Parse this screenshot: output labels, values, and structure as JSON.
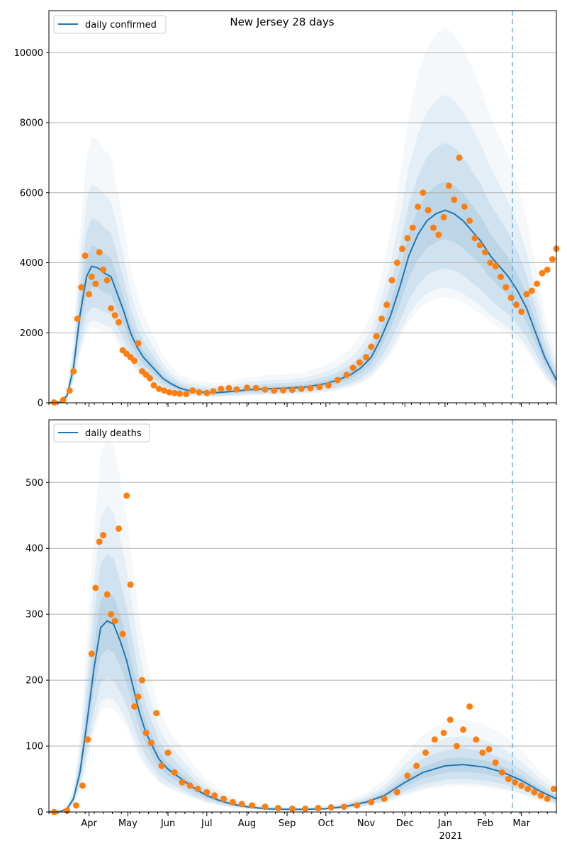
{
  "chart_data": [
    {
      "type": "line",
      "title": "New Jersey 28 days",
      "xlabel": "",
      "ylabel": "",
      "legend": {
        "label": "daily confirmed",
        "placement": "top-left"
      },
      "x_ticks": [
        "Apr",
        "May",
        "Jun",
        "Jul",
        "Aug",
        "Sep",
        "Oct",
        "Nov",
        "Dec",
        "Jan",
        "Feb",
        "Mar"
      ],
      "y_ticks": [
        0,
        2000,
        4000,
        6000,
        8000,
        10000
      ],
      "ylim": [
        0,
        11200
      ],
      "xlim": [
        "2020-03-01",
        "2021-03-28"
      ],
      "grid": "horizontal",
      "forecast_start": "2021-02-22",
      "series": [
        {
          "name": "daily confirmed",
          "kind": "model-median-line",
          "color": "#1f77b4",
          "x": [
            "2020-03-01",
            "2020-03-10",
            "2020-03-15",
            "2020-03-20",
            "2020-03-25",
            "2020-03-30",
            "2020-04-03",
            "2020-04-08",
            "2020-04-13",
            "2020-04-18",
            "2020-04-23",
            "2020-04-28",
            "2020-05-03",
            "2020-05-08",
            "2020-05-13",
            "2020-05-18",
            "2020-05-23",
            "2020-05-28",
            "2020-06-03",
            "2020-06-10",
            "2020-06-17",
            "2020-06-24",
            "2020-07-01",
            "2020-07-08",
            "2020-07-15",
            "2020-07-22",
            "2020-08-01",
            "2020-08-15",
            "2020-09-01",
            "2020-09-15",
            "2020-10-01",
            "2020-10-10",
            "2020-10-20",
            "2020-10-28",
            "2020-11-05",
            "2020-11-12",
            "2020-11-20",
            "2020-11-27",
            "2020-12-04",
            "2020-12-11",
            "2020-12-18",
            "2020-12-25",
            "2021-01-01",
            "2021-01-08",
            "2021-01-15",
            "2021-01-22",
            "2021-01-29",
            "2021-02-05",
            "2021-02-12",
            "2021-02-19",
            "2021-02-26",
            "2021-03-05",
            "2021-03-12",
            "2021-03-19",
            "2021-03-28"
          ],
          "y": [
            0,
            20,
            200,
            1000,
            2500,
            3600,
            3900,
            3850,
            3700,
            3600,
            3100,
            2600,
            2000,
            1600,
            1300,
            1100,
            900,
            700,
            550,
            420,
            350,
            320,
            300,
            290,
            310,
            330,
            370,
            400,
            420,
            450,
            550,
            650,
            800,
            1000,
            1300,
            1800,
            2500,
            3300,
            4200,
            4800,
            5200,
            5400,
            5500,
            5400,
            5200,
            4900,
            4600,
            4200,
            3900,
            3600,
            3200,
            2700,
            2000,
            1300,
            650
          ]
        },
        {
          "name": "",
          "kind": "observed-daily-points",
          "color": "#ff7f0e",
          "x": [
            "2020-03-05",
            "2020-03-12",
            "2020-03-17",
            "2020-03-20",
            "2020-03-23",
            "2020-03-26",
            "2020-03-29",
            "2020-04-01",
            "2020-04-03",
            "2020-04-06",
            "2020-04-09",
            "2020-04-12",
            "2020-04-15",
            "2020-04-18",
            "2020-04-21",
            "2020-04-24",
            "2020-04-27",
            "2020-04-30",
            "2020-05-03",
            "2020-05-06",
            "2020-05-09",
            "2020-05-12",
            "2020-05-15",
            "2020-05-18",
            "2020-05-21",
            "2020-05-25",
            "2020-05-29",
            "2020-06-02",
            "2020-06-06",
            "2020-06-10",
            "2020-06-15",
            "2020-06-20",
            "2020-06-25",
            "2020-07-01",
            "2020-07-06",
            "2020-07-12",
            "2020-07-18",
            "2020-07-24",
            "2020-08-01",
            "2020-08-08",
            "2020-08-15",
            "2020-08-22",
            "2020-08-29",
            "2020-09-05",
            "2020-09-12",
            "2020-09-19",
            "2020-09-26",
            "2020-10-03",
            "2020-10-10",
            "2020-10-17",
            "2020-10-22",
            "2020-10-27",
            "2020-11-01",
            "2020-11-05",
            "2020-11-09",
            "2020-11-13",
            "2020-11-17",
            "2020-11-21",
            "2020-11-25",
            "2020-11-29",
            "2020-12-03",
            "2020-12-07",
            "2020-12-11",
            "2020-12-15",
            "2020-12-19",
            "2020-12-23",
            "2020-12-27",
            "2020-12-31",
            "2021-01-04",
            "2021-01-08",
            "2021-01-12",
            "2021-01-16",
            "2021-01-20",
            "2021-01-24",
            "2021-01-28",
            "2021-02-01",
            "2021-02-05",
            "2021-02-09",
            "2021-02-13",
            "2021-02-17",
            "2021-02-21",
            "2021-02-25",
            "2021-03-01",
            "2021-03-05",
            "2021-03-09",
            "2021-03-13",
            "2021-03-17",
            "2021-03-21",
            "2021-03-25",
            "2021-03-28"
          ],
          "y": [
            10,
            80,
            350,
            900,
            2400,
            3300,
            4200,
            3100,
            3600,
            3400,
            4300,
            3800,
            3500,
            2700,
            2500,
            2300,
            1500,
            1400,
            1300,
            1200,
            1700,
            900,
            800,
            700,
            500,
            400,
            350,
            300,
            280,
            260,
            250,
            350,
            300,
            280,
            330,
            400,
            420,
            380,
            430,
            420,
            380,
            350,
            360,
            370,
            400,
            420,
            450,
            500,
            650,
            800,
            1000,
            1150,
            1300,
            1600,
            1900,
            2400,
            2800,
            3500,
            4000,
            4400,
            4700,
            5000,
            5600,
            6000,
            5500,
            5000,
            4800,
            5300,
            6200,
            5800,
            7000,
            5600,
            5200,
            4700,
            4500,
            4300,
            4000,
            3900,
            3600,
            3300,
            3000,
            2800,
            2600,
            3100,
            3200,
            3400,
            3700,
            3800,
            4100,
            4400
          ]
        }
      ]
    },
    {
      "type": "line",
      "title": "",
      "xlabel": "",
      "ylabel": "",
      "legend": {
        "label": "daily deaths",
        "placement": "top-left"
      },
      "x_ticks": [
        "Apr",
        "May",
        "Jun",
        "Jul",
        "Aug",
        "Sep",
        "Oct",
        "Nov",
        "Dec",
        "Jan",
        "Feb",
        "Mar"
      ],
      "x_year_label": "2021",
      "y_ticks": [
        0,
        100,
        200,
        300,
        400,
        500
      ],
      "ylim": [
        0,
        595
      ],
      "xlim": [
        "2020-03-01",
        "2021-03-28"
      ],
      "grid": "horizontal",
      "forecast_start": "2021-02-22",
      "series": [
        {
          "name": "daily deaths",
          "kind": "model-median-line",
          "color": "#1f77b4",
          "x": [
            "2020-03-01",
            "2020-03-10",
            "2020-03-15",
            "2020-03-20",
            "2020-03-25",
            "2020-03-30",
            "2020-04-05",
            "2020-04-10",
            "2020-04-15",
            "2020-04-20",
            "2020-04-25",
            "2020-04-30",
            "2020-05-05",
            "2020-05-10",
            "2020-05-15",
            "2020-05-20",
            "2020-05-25",
            "2020-06-01",
            "2020-06-08",
            "2020-06-15",
            "2020-06-22",
            "2020-07-01",
            "2020-07-10",
            "2020-07-20",
            "2020-08-01",
            "2020-08-15",
            "2020-09-01",
            "2020-09-15",
            "2020-10-01",
            "2020-10-15",
            "2020-11-01",
            "2020-11-15",
            "2020-12-01",
            "2020-12-15",
            "2021-01-01",
            "2021-01-15",
            "2021-02-01",
            "2021-02-15",
            "2021-03-01",
            "2021-03-15",
            "2021-03-28"
          ],
          "y": [
            0,
            1,
            5,
            20,
            60,
            130,
            220,
            280,
            290,
            285,
            260,
            230,
            190,
            150,
            120,
            100,
            80,
            65,
            55,
            45,
            35,
            25,
            18,
            12,
            8,
            5,
            4,
            4,
            5,
            8,
            15,
            25,
            45,
            60,
            70,
            72,
            68,
            60,
            48,
            32,
            20
          ]
        },
        {
          "name": "",
          "kind": "observed-daily-points",
          "color": "#ff7f0e",
          "x": [
            "2020-03-05",
            "2020-03-15",
            "2020-03-22",
            "2020-03-27",
            "2020-03-31",
            "2020-04-03",
            "2020-04-06",
            "2020-04-09",
            "2020-04-12",
            "2020-04-15",
            "2020-04-18",
            "2020-04-21",
            "2020-04-24",
            "2020-04-27",
            "2020-04-30",
            "2020-05-03",
            "2020-05-06",
            "2020-05-09",
            "2020-05-12",
            "2020-05-15",
            "2020-05-19",
            "2020-05-23",
            "2020-05-27",
            "2020-06-01",
            "2020-06-06",
            "2020-06-12",
            "2020-06-18",
            "2020-06-24",
            "2020-07-01",
            "2020-07-07",
            "2020-07-14",
            "2020-07-21",
            "2020-07-28",
            "2020-08-05",
            "2020-08-15",
            "2020-08-25",
            "2020-09-05",
            "2020-09-15",
            "2020-09-25",
            "2020-10-05",
            "2020-10-15",
            "2020-10-25",
            "2020-11-05",
            "2020-11-15",
            "2020-11-25",
            "2020-12-03",
            "2020-12-10",
            "2020-12-17",
            "2020-12-24",
            "2020-12-31",
            "2021-01-05",
            "2021-01-10",
            "2021-01-15",
            "2021-01-20",
            "2021-01-25",
            "2021-01-30",
            "2021-02-04",
            "2021-02-09",
            "2021-02-14",
            "2021-02-19",
            "2021-02-24",
            "2021-03-01",
            "2021-03-06",
            "2021-03-11",
            "2021-03-16",
            "2021-03-21",
            "2021-03-26"
          ],
          "y": [
            0,
            2,
            10,
            40,
            110,
            240,
            340,
            410,
            420,
            330,
            300,
            290,
            430,
            270,
            480,
            345,
            160,
            175,
            200,
            120,
            105,
            150,
            70,
            90,
            60,
            45,
            40,
            35,
            30,
            25,
            20,
            15,
            12,
            10,
            8,
            6,
            5,
            5,
            6,
            7,
            8,
            10,
            15,
            20,
            30,
            55,
            70,
            90,
            110,
            120,
            140,
            100,
            125,
            160,
            110,
            90,
            95,
            75,
            60,
            50,
            45,
            40,
            35,
            30,
            25,
            20,
            35
          ]
        }
      ]
    }
  ]
}
